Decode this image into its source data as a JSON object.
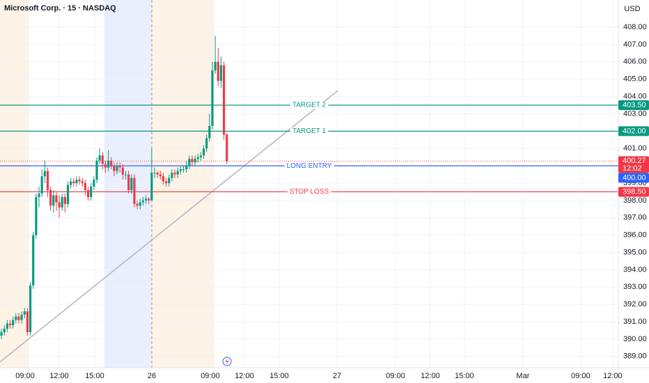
{
  "chart_data": {
    "type": "candlestick",
    "title": "Microsoft Corp. · 15 · NASDAQ",
    "currency": "USD",
    "grid": true,
    "up_color": "#089981",
    "down_color": "#f23645",
    "xlim": [
      0,
      214
    ],
    "xticks": [
      {
        "value": 8.67,
        "label": "09:00"
      },
      {
        "value": 20.48,
        "label": "12:00"
      },
      {
        "value": 32.77,
        "label": "15:00"
      },
      {
        "value": 52.53,
        "label": "26"
      },
      {
        "value": 72.77,
        "label": "09:00"
      },
      {
        "value": 84.58,
        "label": "12:00"
      },
      {
        "value": 96.63,
        "label": "15:00"
      },
      {
        "value": 116.63,
        "label": "27"
      },
      {
        "value": 136.87,
        "label": "09:00"
      },
      {
        "value": 148.92,
        "label": "12:00"
      },
      {
        "value": 160.72,
        "label": "15:00"
      },
      {
        "value": 180.96,
        "label": "Mar"
      },
      {
        "value": 200.96,
        "label": "09:00"
      },
      {
        "value": 212.05,
        "label": "12:00"
      }
    ],
    "ylim": [
      388.35,
      409.57
    ],
    "yticks": [
      {
        "value": 389,
        "label": "389.00"
      },
      {
        "value": 390,
        "label": "390.00"
      },
      {
        "value": 391,
        "label": "391.00"
      },
      {
        "value": 392,
        "label": "392.00"
      },
      {
        "value": 393,
        "label": "393.00"
      },
      {
        "value": 394,
        "label": "394.00"
      },
      {
        "value": 395,
        "label": "395.00"
      },
      {
        "value": 396,
        "label": "396.00"
      },
      {
        "value": 397,
        "label": "397.00"
      },
      {
        "value": 398,
        "label": "398.00"
      },
      {
        "value": 399,
        "label": "399.00"
      },
      {
        "value": 400,
        "label": "400.00"
      },
      {
        "value": 401,
        "label": "401.00"
      },
      {
        "value": 402,
        "label": "402.00"
      },
      {
        "value": 403,
        "label": "403.00"
      },
      {
        "value": 404,
        "label": "404.00"
      },
      {
        "value": 405,
        "label": "405.00"
      },
      {
        "value": 406,
        "label": "406.00"
      },
      {
        "value": 407,
        "label": "407.00"
      },
      {
        "value": 408,
        "label": "408.00"
      }
    ],
    "sessions": [
      {
        "x": [
          0,
          10.1
        ],
        "color": "#fdf3e6"
      },
      {
        "x": [
          36.1,
          52.5
        ],
        "color": "#e9effd"
      },
      {
        "x": [
          52.5,
          74.2
        ],
        "color": "#fdf3e6"
      }
    ],
    "session_break": 52.53,
    "open": [
      390.2,
      390.4,
      390.6,
      390.9,
      390.8,
      391.1,
      391.3,
      391.1,
      391.4,
      391.6,
      390.4,
      393.1,
      396.0,
      398.2,
      398.4,
      399.4,
      399.7,
      398.6,
      397.7,
      398.3,
      397.9,
      397.6,
      398.2,
      397.8,
      398.9,
      399.1,
      399.0,
      399.2,
      399.1,
      399.0,
      398.6,
      398.2,
      398.8,
      399.2,
      400.3,
      400.6,
      400.1,
      399.9,
      400.3,
      400.0,
      399.7,
      400.0,
      399.9,
      399.5,
      399.5,
      398.6,
      399.3,
      397.8,
      397.7,
      397.9,
      398.0,
      398.1,
      398.0,
      399.6,
      399.6,
      399.5,
      399.4,
      399.1,
      399.0,
      399.3,
      399.6,
      399.5,
      399.7,
      399.8,
      399.8,
      400.0,
      400.4,
      400.2,
      400.4,
      400.5,
      400.6,
      401.0,
      401.6,
      402.3,
      405.5,
      406.0,
      404.9,
      405.8,
      401.8
    ],
    "high": [
      390.6,
      390.8,
      391.1,
      391.1,
      391.3,
      391.5,
      391.5,
      391.6,
      391.8,
      391.8,
      393.3,
      396.2,
      398.4,
      398.8,
      399.8,
      400.3,
      399.9,
      398.8,
      398.6,
      398.5,
      398.3,
      398.4,
      398.4,
      399.1,
      399.3,
      399.3,
      399.4,
      399.4,
      399.3,
      399.2,
      398.8,
      399.0,
      399.4,
      400.5,
      401.0,
      400.8,
      400.3,
      400.9,
      400.5,
      400.2,
      400.2,
      400.2,
      400.1,
      399.7,
      399.7,
      399.5,
      399.5,
      398.0,
      398.1,
      398.2,
      398.3,
      398.2,
      401.0,
      399.9,
      399.7,
      399.7,
      399.6,
      399.3,
      399.5,
      399.8,
      399.8,
      399.9,
      400.0,
      400.0,
      400.3,
      400.6,
      400.6,
      400.6,
      400.7,
      400.8,
      401.2,
      401.8,
      403.0,
      406.0,
      407.5,
      406.8,
      406.3,
      406.0,
      401.9
    ],
    "low": [
      390.0,
      390.2,
      390.4,
      390.6,
      390.6,
      390.9,
      390.9,
      390.9,
      391.2,
      390.2,
      390.2,
      392.9,
      395.8,
      397.6,
      398.2,
      399.0,
      398.2,
      397.4,
      397.3,
      397.4,
      397.0,
      397.4,
      397.3,
      397.6,
      398.7,
      398.8,
      398.8,
      398.9,
      398.8,
      398.3,
      398.0,
      398.0,
      398.6,
      399.0,
      400.1,
      399.8,
      399.6,
      399.7,
      399.8,
      399.4,
      399.5,
      399.6,
      399.2,
      399.2,
      398.4,
      398.4,
      397.6,
      397.5,
      397.5,
      397.7,
      397.8,
      397.8,
      398.0,
      399.3,
      399.3,
      399.2,
      398.9,
      398.8,
      398.8,
      399.1,
      399.3,
      399.3,
      399.5,
      399.6,
      399.6,
      399.8,
      400.0,
      400.0,
      400.2,
      400.3,
      400.4,
      400.8,
      401.4,
      402.1,
      405.3,
      404.6,
      404.5,
      401.5,
      400.1
    ],
    "close": [
      390.4,
      390.6,
      390.9,
      390.8,
      391.1,
      391.3,
      391.1,
      391.4,
      391.6,
      390.4,
      393.1,
      396.0,
      398.2,
      398.4,
      399.4,
      399.7,
      398.6,
      397.7,
      398.3,
      397.9,
      397.6,
      398.2,
      397.8,
      398.9,
      399.1,
      399.0,
      399.2,
      399.1,
      399.0,
      398.6,
      398.2,
      398.8,
      399.2,
      400.3,
      400.6,
      400.1,
      399.9,
      400.3,
      400.0,
      399.7,
      400.0,
      399.9,
      399.5,
      399.5,
      398.6,
      399.3,
      397.8,
      397.7,
      397.9,
      398.0,
      398.1,
      398.0,
      399.6,
      399.6,
      399.5,
      399.4,
      399.1,
      399.0,
      399.3,
      399.6,
      399.5,
      399.7,
      399.8,
      399.8,
      400.0,
      400.4,
      400.2,
      400.4,
      400.5,
      400.6,
      401.0,
      401.6,
      402.3,
      405.5,
      406.0,
      404.9,
      405.8,
      401.8,
      400.27
    ],
    "levels": [
      {
        "name": "TARGET 2",
        "value": 403.5,
        "label": "403.50",
        "color": "#089981"
      },
      {
        "name": "TARGET 1",
        "value": 402,
        "label": "402.00",
        "color": "#089981"
      },
      {
        "name": "LONG ENTRY",
        "value": 400,
        "label": "400.00",
        "color": "#2962ff"
      },
      {
        "name": "STOP LOSS",
        "value": 398.5,
        "label": "398.50",
        "color": "#f23645"
      }
    ],
    "last_price": {
      "value": 400.27,
      "countdown": "12:02",
      "color": "#f23645"
    },
    "trendline": {
      "x": [
        0,
        116.9
      ],
      "y": [
        388.68,
        404.34
      ],
      "color": "#b2b5be"
    }
  }
}
